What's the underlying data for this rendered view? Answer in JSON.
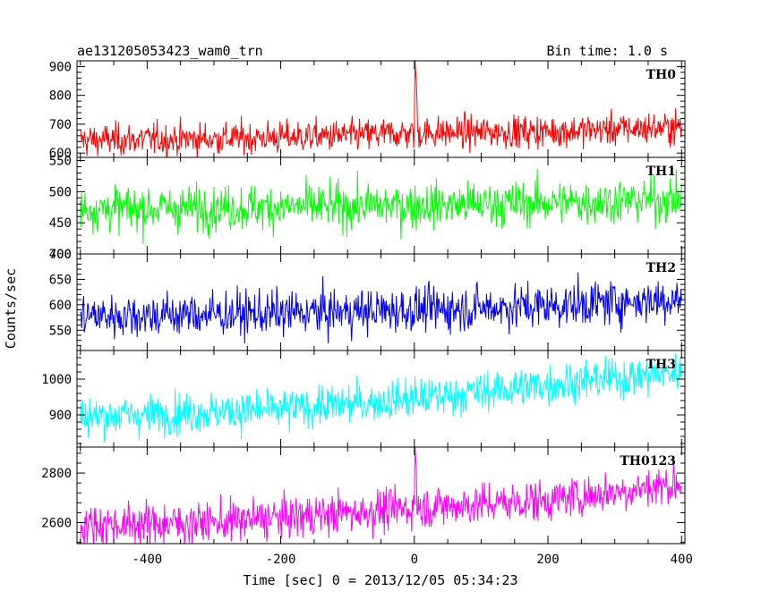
{
  "chart_data": {
    "type": "line",
    "title_left": "ae131205053423_wam0_trn",
    "title_right": "Bin time: 1.0 s",
    "ylabel": "Counts/sec",
    "xlabel": "Time [sec] 0 = 2013/12/05 05:34:23",
    "xlim": [
      -505,
      405
    ],
    "x_ticks": [
      -400,
      -200,
      0,
      200,
      400
    ],
    "bin_time_s": 1.0,
    "panels": [
      {
        "name": "TH0",
        "color": "#ff0000",
        "ylim": [
          585,
          920
        ],
        "y_ticks": [
          600,
          700,
          800,
          900
        ],
        "trend": [
          [
            -500,
            645
          ],
          [
            -300,
            650
          ],
          [
            -100,
            660
          ],
          [
            0,
            670
          ],
          [
            200,
            675
          ],
          [
            400,
            690
          ]
        ],
        "noise_sd": 28,
        "spikes": [
          [
            1,
            920
          ],
          [
            2,
            880
          ],
          [
            3,
            850
          ],
          [
            4,
            780
          ]
        ]
      },
      {
        "name": "TH1",
        "color": "#00ff00",
        "ylim": [
          400,
          555
        ],
        "y_ticks": [
          400,
          450,
          500,
          550
        ],
        "trend": [
          [
            -500,
            472
          ],
          [
            -200,
            475
          ],
          [
            0,
            478
          ],
          [
            200,
            482
          ],
          [
            400,
            488
          ]
        ],
        "noise_sd": 18,
        "spikes": []
      },
      {
        "name": "TH2",
        "color": "#0000ff",
        "ylim": [
          510,
          700
        ],
        "y_ticks": [
          550,
          600,
          650,
          700
        ],
        "trend": [
          [
            -500,
            578
          ],
          [
            -200,
            583
          ],
          [
            0,
            590
          ],
          [
            200,
            598
          ],
          [
            400,
            612
          ]
        ],
        "noise_sd": 22,
        "spikes": []
      },
      {
        "name": "TH3",
        "color": "#00ffff",
        "ylim": [
          810,
          1080
        ],
        "y_ticks": [
          900,
          1000
        ],
        "trend": [
          [
            -500,
            895
          ],
          [
            -200,
            915
          ],
          [
            0,
            945
          ],
          [
            200,
            985
          ],
          [
            400,
            1020
          ]
        ],
        "noise_sd": 28,
        "spikes": []
      },
      {
        "name": "TH0123",
        "color": "#ff00ff",
        "ylim": [
          2515,
          2905
        ],
        "y_ticks": [
          2600,
          2800
        ],
        "trend": [
          [
            -500,
            2590
          ],
          [
            -300,
            2600
          ],
          [
            -100,
            2640
          ],
          [
            0,
            2660
          ],
          [
            200,
            2690
          ],
          [
            400,
            2760
          ]
        ],
        "noise_sd": 42,
        "spikes": [
          [
            1,
            2910
          ],
          [
            2,
            2860
          ],
          [
            3,
            2820
          ]
        ]
      }
    ]
  }
}
